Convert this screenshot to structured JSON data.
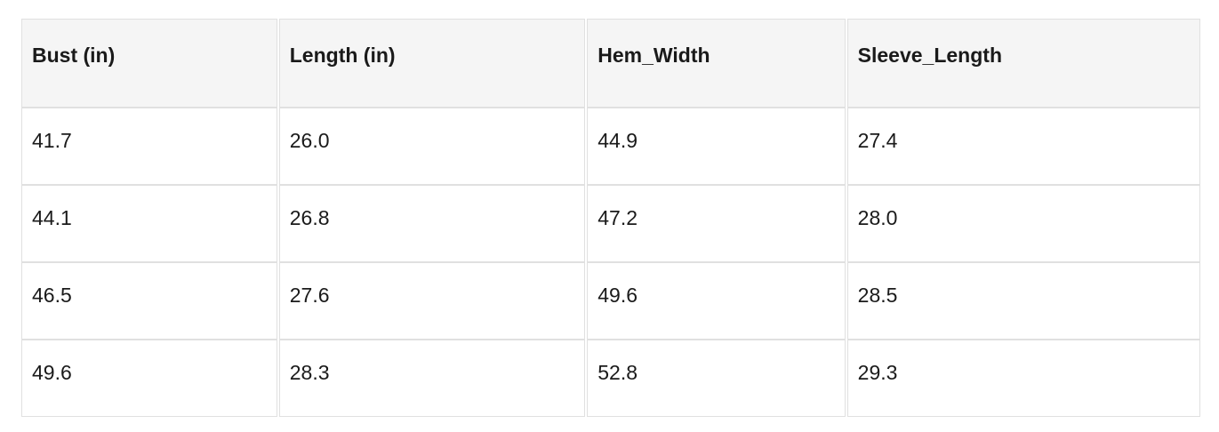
{
  "table": {
    "columns": [
      "Bust (in)",
      "Length (in)",
      "Hem_Width",
      "Sleeve_Length"
    ],
    "rows": [
      [
        "41.7",
        "26.0",
        "44.9",
        "27.4"
      ],
      [
        "44.1",
        "26.8",
        "47.2",
        "28.0"
      ],
      [
        "46.5",
        "27.6",
        "49.6",
        "28.5"
      ],
      [
        "49.6",
        "28.3",
        "52.8",
        "29.3"
      ]
    ]
  },
  "colors": {
    "header_bg": "#f5f5f5",
    "border": "#e0e0e0",
    "text": "#1a1a1a",
    "page_bg": "#ffffff"
  }
}
